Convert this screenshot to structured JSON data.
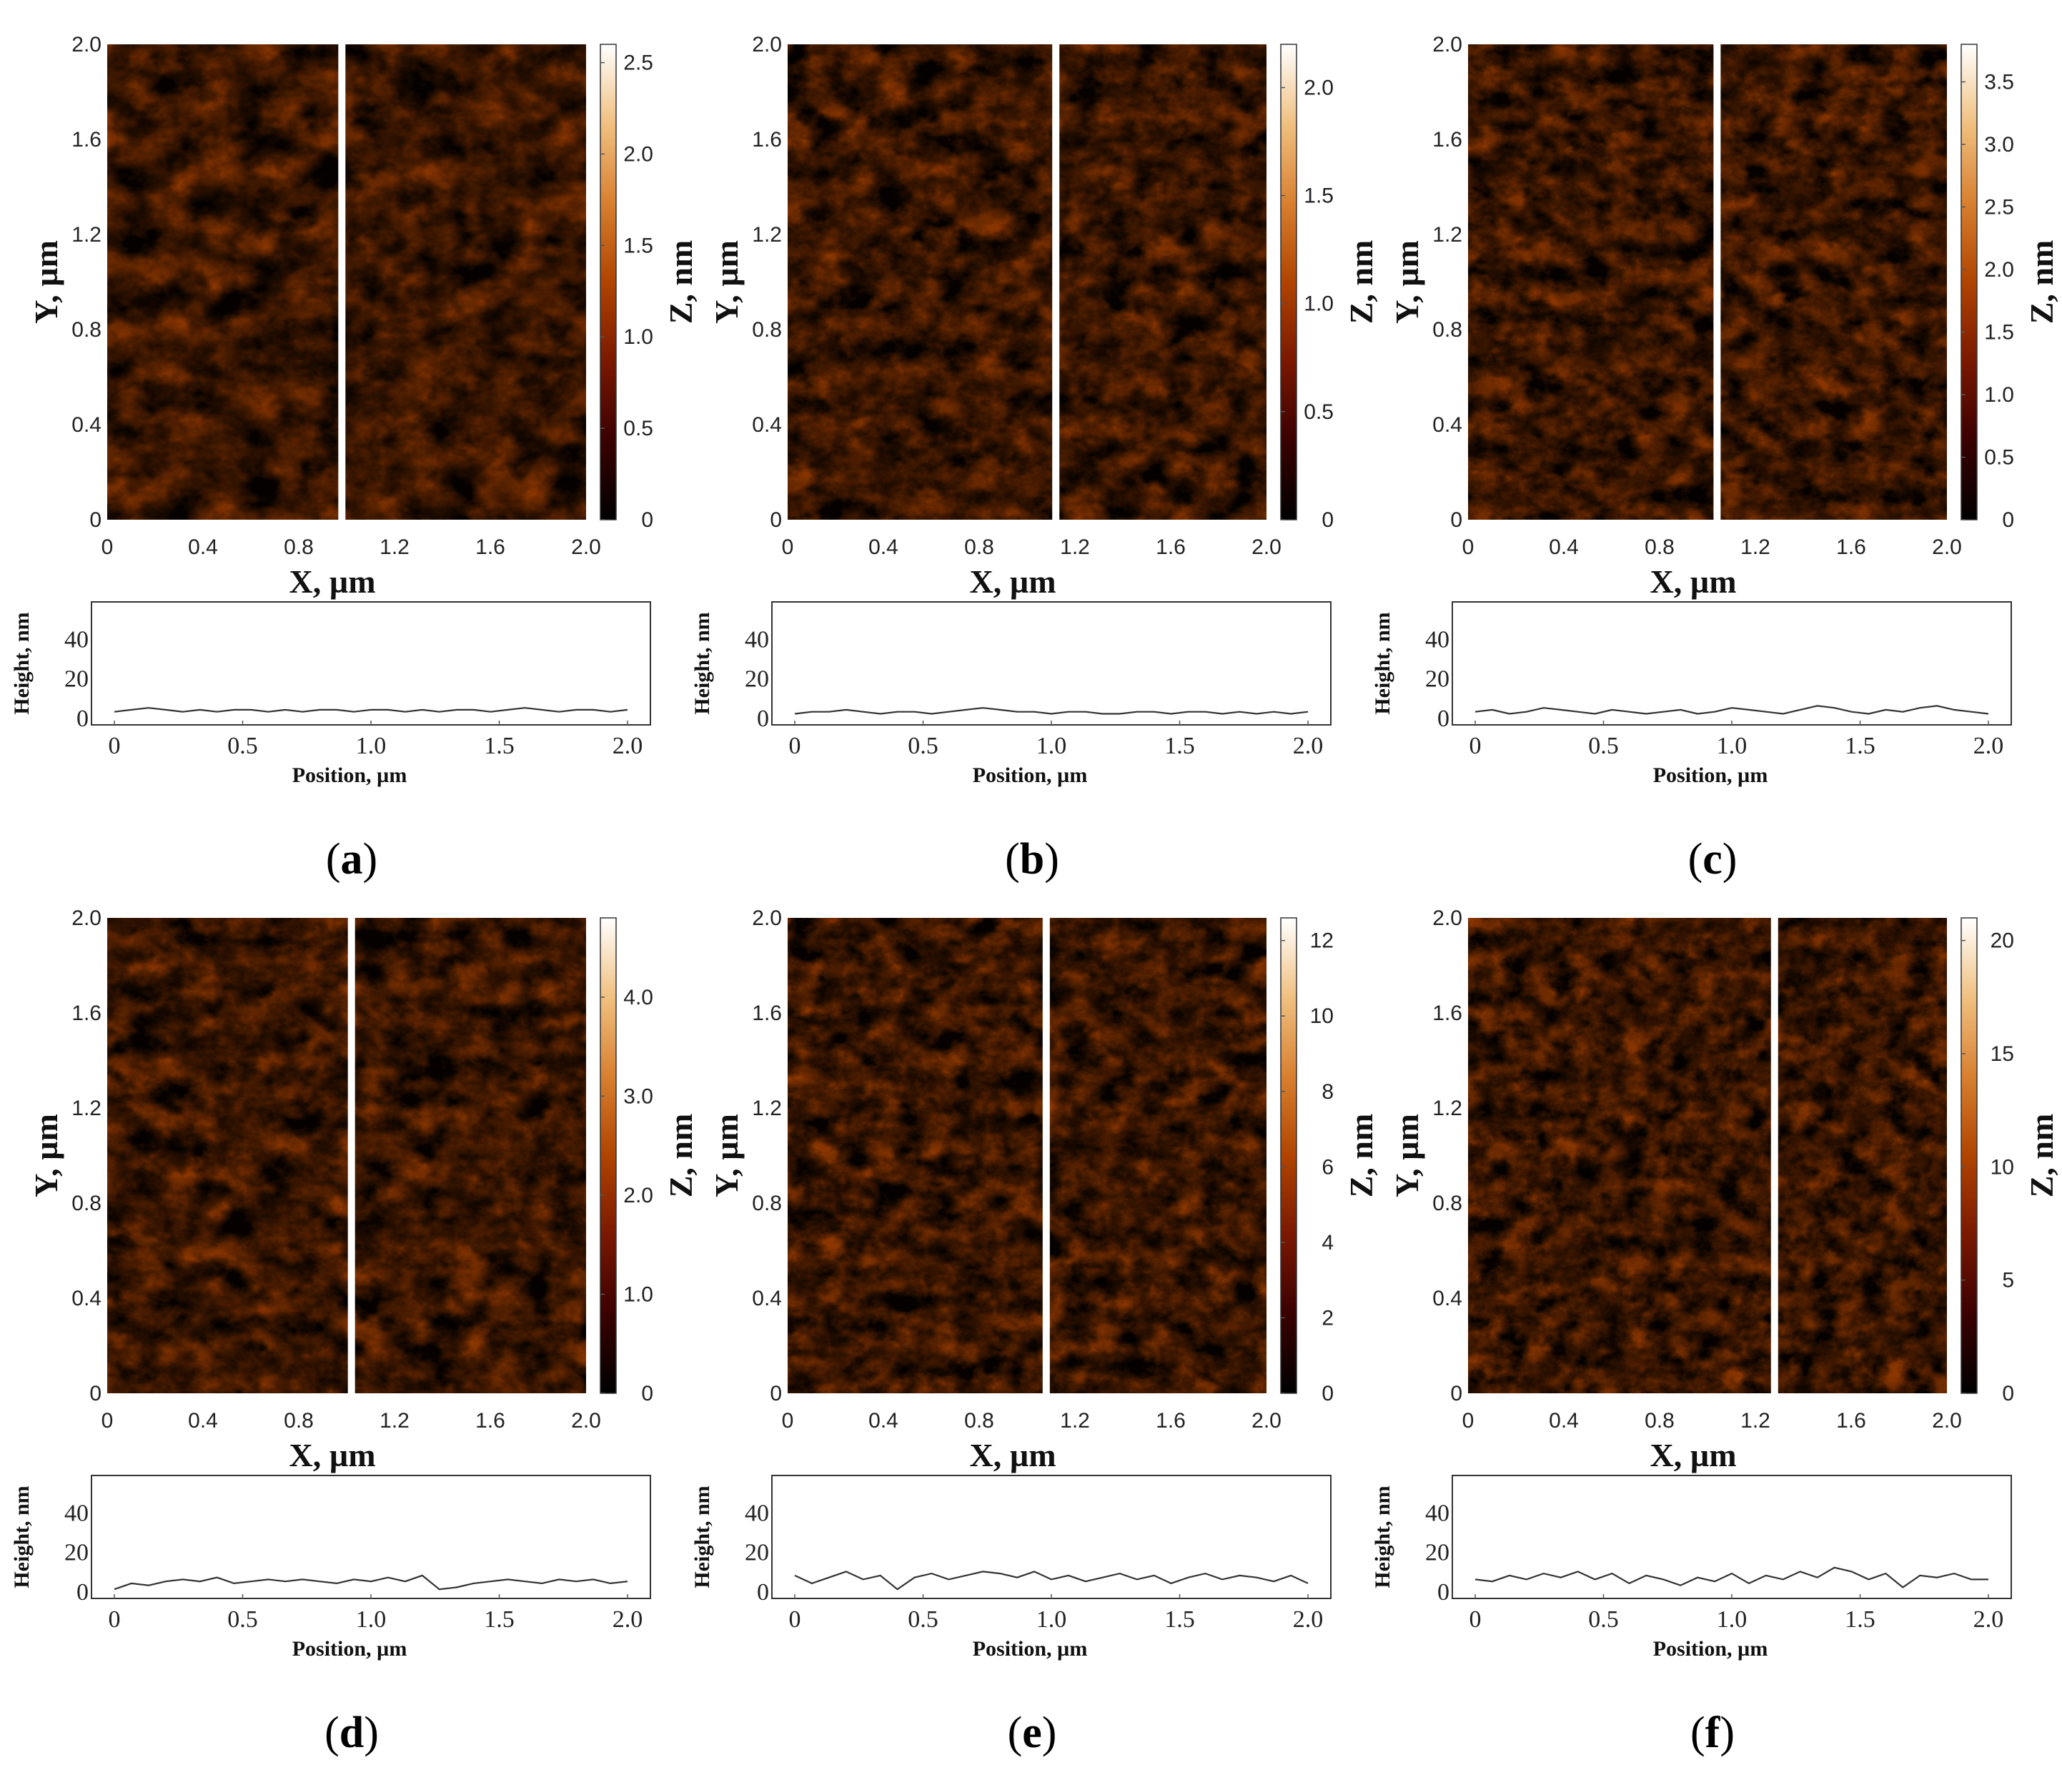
{
  "colors": {
    "colormap": [
      "#000000",
      "#3a0000",
      "#7a1800",
      "#b04400",
      "#d88030",
      "#f0c080",
      "#ffffff"
    ],
    "profile_line": "#333333",
    "frame": "#333333"
  },
  "chart_data": [
    {
      "type": "heatmap",
      "panel": "a",
      "caption": {
        "open": "(",
        "letter": "a",
        "close": ")"
      },
      "xlabel": "X, µm",
      "ylabel": "Y, µm",
      "zlabel": "Z, nm",
      "xlim": [
        0,
        2.0
      ],
      "ylim": [
        0,
        2.0
      ],
      "xticks": [
        "0",
        "0.4",
        "0.8",
        "1.2",
        "1.6",
        "2.0"
      ],
      "yticks": [
        "0",
        "0.4",
        "0.8",
        "1.2",
        "1.6",
        "2.0"
      ],
      "zlim": [
        0,
        2.6
      ],
      "zticks": [
        {
          "label": "0",
          "value": 0
        },
        {
          "label": "0.5",
          "value": 0.5
        },
        {
          "label": "1.0",
          "value": 1.0
        },
        {
          "label": "1.5",
          "value": 1.5
        },
        {
          "label": "2.0",
          "value": 2.0
        },
        {
          "label": "2.5",
          "value": 2.5
        }
      ],
      "split_x": 0.98,
      "profile": {
        "xlabel": "Position, µm",
        "ylabel": "Height, nm",
        "xticks": [
          "0",
          "0.5",
          "1.0",
          "1.5",
          "2.0"
        ],
        "yticks": [
          "0",
          "20",
          "40"
        ],
        "xlim": [
          0,
          2.0
        ],
        "ylim": [
          0,
          55
        ],
        "heights": [
          3,
          4,
          5,
          4,
          3,
          4,
          3,
          4,
          4,
          3,
          4,
          3,
          4,
          4,
          3,
          4,
          4,
          3,
          4,
          3,
          4,
          4,
          3,
          4,
          5,
          4,
          3,
          4,
          4,
          3,
          4
        ]
      }
    },
    {
      "type": "heatmap",
      "panel": "b",
      "caption": {
        "open": "(",
        "letter": "b",
        "close": ")"
      },
      "xlabel": "X, µm",
      "ylabel": "Y, µm",
      "zlabel": "Z, nm",
      "xlim": [
        0,
        2.0
      ],
      "ylim": [
        0,
        2.0
      ],
      "xticks": [
        "0",
        "0.4",
        "0.8",
        "1.2",
        "1.6",
        "2.0"
      ],
      "yticks": [
        "0",
        "0.4",
        "0.8",
        "1.2",
        "1.6",
        "2.0"
      ],
      "zlim": [
        0,
        2.2
      ],
      "zticks": [
        {
          "label": "0",
          "value": 0
        },
        {
          "label": "0.5",
          "value": 0.5
        },
        {
          "label": "1.0",
          "value": 1.0
        },
        {
          "label": "1.5",
          "value": 1.5
        },
        {
          "label": "2.0",
          "value": 2.0
        }
      ],
      "split_x": 1.12,
      "profile": {
        "xlabel": "Position, µm",
        "ylabel": "Height, nm",
        "xticks": [
          "0",
          "0.5",
          "1.0",
          "1.5",
          "2.0"
        ],
        "yticks": [
          "0",
          "20",
          "40"
        ],
        "xlim": [
          0,
          2.0
        ],
        "ylim": [
          0,
          55
        ],
        "heights": [
          2,
          3,
          3,
          4,
          3,
          2,
          3,
          3,
          2,
          3,
          4,
          5,
          4,
          3,
          3,
          2,
          3,
          3,
          2,
          2,
          3,
          3,
          2,
          3,
          3,
          2,
          3,
          2,
          3,
          2,
          3
        ]
      }
    },
    {
      "type": "heatmap",
      "panel": "c",
      "caption": {
        "open": "(",
        "letter": "c",
        "close": ")"
      },
      "xlabel": "X, µm",
      "ylabel": "Y, µm",
      "zlabel": "Z, nm",
      "xlim": [
        0,
        2.0
      ],
      "ylim": [
        0,
        2.0
      ],
      "xticks": [
        "0",
        "0.4",
        "0.8",
        "1.2",
        "1.6",
        "2.0"
      ],
      "yticks": [
        "0",
        "0.4",
        "0.8",
        "1.2",
        "1.6",
        "2.0"
      ],
      "zlim": [
        0,
        3.8
      ],
      "zticks": [
        {
          "label": "0",
          "value": 0
        },
        {
          "label": "0.5",
          "value": 0.5
        },
        {
          "label": "1.0",
          "value": 1.0
        },
        {
          "label": "1.5",
          "value": 1.5
        },
        {
          "label": "2.0",
          "value": 2.0
        },
        {
          "label": "2.5",
          "value": 2.5
        },
        {
          "label": "3.0",
          "value": 3.0
        },
        {
          "label": "3.5",
          "value": 3.5
        }
      ],
      "split_x": 1.04,
      "profile": {
        "xlabel": "Position, µm",
        "ylabel": "Height, nm",
        "xticks": [
          "0",
          "0.5",
          "1.0",
          "1.5",
          "2.0"
        ],
        "yticks": [
          "0",
          "20",
          "40"
        ],
        "xlim": [
          0,
          2.0
        ],
        "ylim": [
          0,
          55
        ],
        "heights": [
          3,
          4,
          2,
          3,
          5,
          4,
          3,
          2,
          4,
          3,
          2,
          3,
          4,
          2,
          3,
          5,
          4,
          3,
          2,
          4,
          6,
          5,
          3,
          2,
          4,
          3,
          5,
          6,
          4,
          3,
          2
        ]
      }
    },
    {
      "type": "heatmap",
      "panel": "d",
      "caption": {
        "open": "(",
        "letter": "d",
        "close": ")"
      },
      "xlabel": "X, µm",
      "ylabel": "Y, µm",
      "zlabel": "Z, nm",
      "xlim": [
        0,
        2.0
      ],
      "ylim": [
        0,
        2.0
      ],
      "xticks": [
        "0",
        "0.4",
        "0.8",
        "1.2",
        "1.6",
        "2.0"
      ],
      "yticks": [
        "0",
        "0.4",
        "0.8",
        "1.2",
        "1.6",
        "2.0"
      ],
      "zlim": [
        0,
        4.8
      ],
      "zticks": [
        {
          "label": "0",
          "value": 0
        },
        {
          "label": "1.0",
          "value": 1.0
        },
        {
          "label": "2.0",
          "value": 2.0
        },
        {
          "label": "3.0",
          "value": 3.0
        },
        {
          "label": "4.0",
          "value": 4.0
        }
      ],
      "split_x": 1.02,
      "profile": {
        "xlabel": "Position, µm",
        "ylabel": "Height, nm",
        "xticks": [
          "0",
          "0.5",
          "1.0",
          "1.5",
          "2.0"
        ],
        "yticks": [
          "0",
          "20",
          "40"
        ],
        "xlim": [
          0,
          2.0
        ],
        "ylim": [
          0,
          55
        ],
        "heights": [
          1,
          4,
          3,
          5,
          6,
          5,
          7,
          4,
          5,
          6,
          5,
          6,
          5,
          4,
          6,
          5,
          7,
          5,
          8,
          1,
          2,
          4,
          5,
          6,
          5,
          4,
          6,
          5,
          6,
          4,
          5
        ]
      }
    },
    {
      "type": "heatmap",
      "panel": "e",
      "caption": {
        "open": "(",
        "letter": "e",
        "close": ")"
      },
      "xlabel": "X, µm",
      "ylabel": "Y, µm",
      "zlabel": "Z, nm",
      "xlim": [
        0,
        2.0
      ],
      "ylim": [
        0,
        2.0
      ],
      "xticks": [
        "0",
        "0.4",
        "0.8",
        "1.2",
        "1.6",
        "2.0"
      ],
      "yticks": [
        "0",
        "0.4",
        "0.8",
        "1.2",
        "1.6",
        "2.0"
      ],
      "zlim": [
        0,
        12.6
      ],
      "zticks": [
        {
          "label": "0",
          "value": 0
        },
        {
          "label": "2",
          "value": 2
        },
        {
          "label": "4",
          "value": 4
        },
        {
          "label": "6",
          "value": 6
        },
        {
          "label": "8",
          "value": 8
        },
        {
          "label": "10",
          "value": 10
        },
        {
          "label": "12",
          "value": 12
        }
      ],
      "split_x": 1.08,
      "profile": {
        "xlabel": "Position, µm",
        "ylabel": "Height, nm",
        "xticks": [
          "0",
          "0.5",
          "1.0",
          "1.5",
          "2.0"
        ],
        "yticks": [
          "0",
          "20",
          "40"
        ],
        "xlim": [
          0,
          2.0
        ],
        "ylim": [
          0,
          55
        ],
        "heights": [
          8,
          4,
          7,
          10,
          6,
          8,
          1,
          7,
          9,
          6,
          8,
          10,
          9,
          7,
          10,
          6,
          8,
          5,
          7,
          9,
          6,
          8,
          4,
          7,
          9,
          6,
          8,
          7,
          5,
          8,
          4
        ]
      }
    },
    {
      "type": "heatmap",
      "panel": "f",
      "caption": {
        "open": "(",
        "letter": "f",
        "close": ")"
      },
      "xlabel": "X, µm",
      "ylabel": "Y, µm",
      "zlabel": "Z, nm",
      "xlim": [
        0,
        2.0
      ],
      "ylim": [
        0,
        2.0
      ],
      "xticks": [
        "0",
        "0.4",
        "0.8",
        "1.2",
        "1.6",
        "2.0"
      ],
      "yticks": [
        "0",
        "0.4",
        "0.8",
        "1.2",
        "1.6",
        "2.0"
      ],
      "zlim": [
        0,
        21
      ],
      "zticks": [
        {
          "label": "0",
          "value": 0
        },
        {
          "label": "5",
          "value": 5
        },
        {
          "label": "10",
          "value": 10
        },
        {
          "label": "15",
          "value": 15
        },
        {
          "label": "20",
          "value": 20
        }
      ],
      "split_x": 1.28,
      "profile": {
        "xlabel": "Position, µm",
        "ylabel": "Height, nm",
        "xticks": [
          "0",
          "0.5",
          "1.0",
          "1.5",
          "2.0"
        ],
        "yticks": [
          "0",
          "20",
          "40"
        ],
        "xlim": [
          0,
          2.0
        ],
        "ylim": [
          0,
          55
        ],
        "heights": [
          6,
          5,
          8,
          6,
          9,
          7,
          10,
          6,
          9,
          4,
          8,
          6,
          3,
          7,
          5,
          9,
          4,
          8,
          6,
          10,
          7,
          12,
          10,
          6,
          9,
          2,
          8,
          7,
          9,
          6,
          6
        ]
      }
    }
  ]
}
